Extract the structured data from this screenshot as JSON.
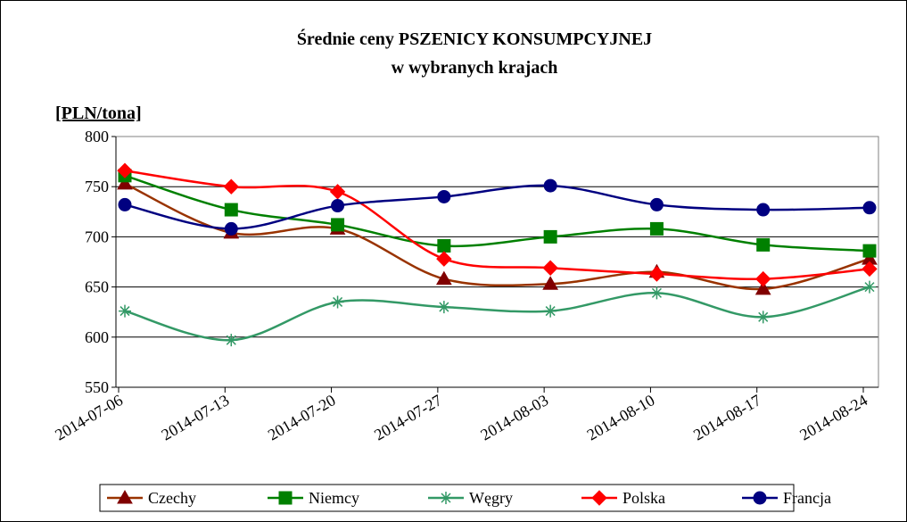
{
  "chart_data": {
    "type": "line",
    "title": "Średnie ceny PSZENICY KONSUMPCYJNEJ",
    "subtitle": "w wybranych krajach",
    "y_label": "[PLN/tona]",
    "categories": [
      "2014-07-06",
      "2014-07-13",
      "2014-07-20",
      "2014-07-27",
      "2014-08-03",
      "2014-08-10",
      "2014-08-17",
      "2014-08-24"
    ],
    "series": [
      {
        "name": "Czechy",
        "color": "#993300",
        "marker": "triangle",
        "marker_color": "#800000",
        "values": [
          753,
          704,
          708,
          658,
          653,
          665,
          648,
          678
        ]
      },
      {
        "name": "Niemcy",
        "color": "#008000",
        "marker": "square",
        "marker_color": "#008000",
        "values": [
          761,
          727,
          712,
          691,
          700,
          708,
          692,
          686
        ]
      },
      {
        "name": "Węgry",
        "color": "#339966",
        "marker": "star",
        "marker_color": "#339966",
        "values": [
          626,
          597,
          635,
          630,
          626,
          644,
          620,
          650
        ]
      },
      {
        "name": "Polska",
        "color": "#ff0000",
        "marker": "diamond",
        "marker_color": "#ff0000",
        "values": [
          766,
          750,
          745,
          678,
          669,
          663,
          658,
          668
        ]
      },
      {
        "name": "Francja",
        "color": "#000080",
        "marker": "circle",
        "marker_color": "#000080",
        "values": [
          732,
          708,
          731,
          740,
          751,
          732,
          727,
          729
        ]
      }
    ],
    "ylim": [
      550,
      800
    ],
    "yticks": [
      550,
      600,
      650,
      700,
      750,
      800
    ],
    "grid": true,
    "legend": "bottom"
  }
}
